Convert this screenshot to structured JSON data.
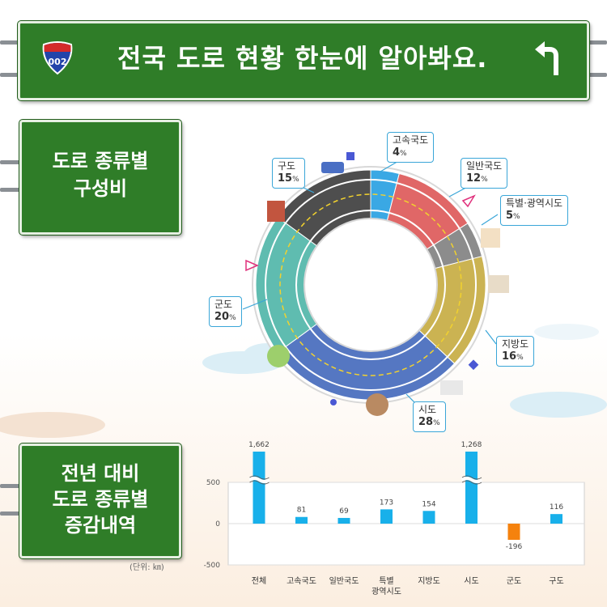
{
  "header": {
    "title": "전국 도로 현황 한눈에 알아봐요.",
    "shield": "002"
  },
  "sections": {
    "composition_line1": "도로 종류별",
    "composition_line2": "구성비",
    "change_line1": "전년 대비",
    "change_line2": "도로 종류별",
    "change_line3": "증감내역"
  },
  "colors": {
    "sign_green": "#2f7d28",
    "bar_blue": "#18b0ea",
    "bar_orange": "#f5820d"
  },
  "chart_data": [
    {
      "type": "pie",
      "title": "도로 종류별 구성비",
      "slices": [
        {
          "name": "고속국도",
          "value": 4,
          "color": "#3aa8e4"
        },
        {
          "name": "일반국도",
          "value": 12,
          "color": "#e06767"
        },
        {
          "name": "특별·광역시도",
          "value": 5,
          "color": "#8c8c8c"
        },
        {
          "name": "지방도",
          "value": 16,
          "color": "#cbb352"
        },
        {
          "name": "시도",
          "value": 28,
          "color": "#5577c2"
        },
        {
          "name": "군도",
          "value": 20,
          "color": "#5fbcb0"
        },
        {
          "name": "구도",
          "value": 15,
          "color": "#4e4e4e"
        }
      ],
      "unit": "%"
    },
    {
      "type": "bar",
      "title": "전년 대비 도로 종류별 증감내역",
      "unit": "(단위: ㎞)",
      "categories": [
        "전체",
        "고속국도",
        "일반국도",
        "특별\n광역시도",
        "지방도",
        "시도",
        "군도",
        "구도"
      ],
      "values": [
        1662,
        81,
        69,
        173,
        154,
        1268,
        -196,
        116
      ],
      "value_labels": [
        "1,662",
        "81",
        "69",
        "173",
        "154",
        "1,268",
        "-196",
        "116"
      ],
      "broken_axis": [
        true,
        false,
        false,
        false,
        false,
        true,
        false,
        false
      ],
      "ylim": [
        -500,
        500
      ],
      "yticks": [
        {
          "v": 500,
          "label": "500"
        },
        {
          "v": 0,
          "label": "0"
        },
        {
          "v": -500,
          "label": "-500"
        }
      ],
      "grid": true
    }
  ]
}
